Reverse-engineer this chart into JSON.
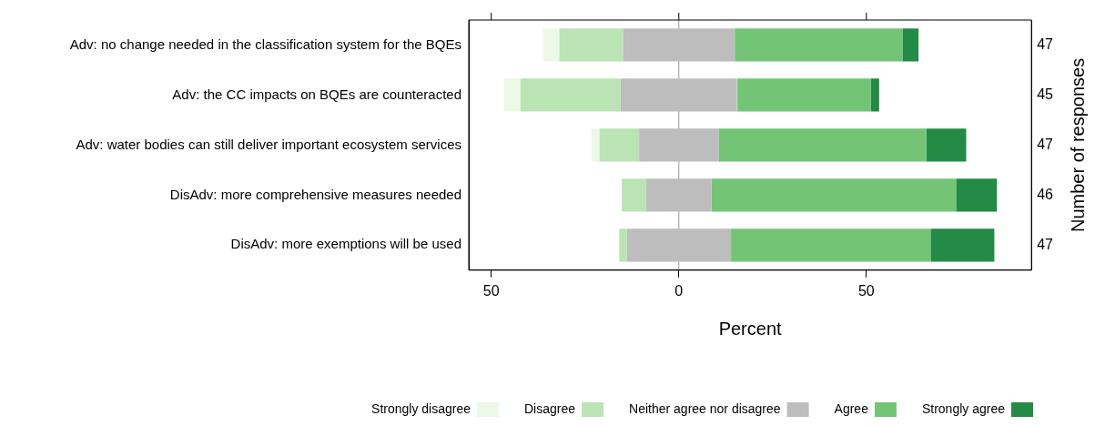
{
  "chart_data": {
    "type": "bar",
    "orientation": "horizontal",
    "categories": [
      "Adv: no change needed in the classification system for the BQEs",
      "Adv: the CC impacts on BQEs are counteracted",
      "Adv: water bodies can still deliver important ecosystem services",
      "DisAdv: more comprehensive measures needed",
      "DisAdv: more exemptions will be used"
    ],
    "y2_categories": [
      "47",
      "45",
      "47",
      "46",
      "47"
    ],
    "series": [
      {
        "name": "Strongly disagree",
        "color": "#edf8e9",
        "values": [
          4.3,
          4.4,
          2.1,
          null,
          null
        ],
        "base": [
          -36.2,
          -46.7,
          -23.3,
          null,
          null
        ]
      },
      {
        "name": "Disagree",
        "color": "#bae4b3",
        "values": [
          17.0,
          26.7,
          10.6,
          6.5,
          2.1
        ],
        "base": [
          -31.9,
          -42.3,
          -21.2,
          -15.2,
          -15.9
        ]
      },
      {
        "name": "Neither agree nor disagree",
        "color": "#bdbdbd",
        "values": [
          29.8,
          31.1,
          21.3,
          17.4,
          27.7
        ],
        "base": [
          -14.9,
          -15.6,
          -10.6,
          -8.7,
          -13.8
        ]
      },
      {
        "name": "Agree",
        "color": "#74c476",
        "values": [
          44.7,
          35.6,
          55.3,
          65.2,
          53.2
        ],
        "base": [
          14.9,
          15.6,
          10.7,
          8.7,
          13.9
        ]
      },
      {
        "name": "Strongly agree",
        "color": "#238b45",
        "values": [
          4.3,
          2.2,
          10.6,
          10.9,
          17.0
        ],
        "base": [
          59.6,
          51.2,
          66.0,
          73.9,
          67.1
        ]
      }
    ],
    "xlim": [
      -56,
      94
    ],
    "xticks": [
      {
        "value": -50,
        "label": "50"
      },
      0,
      50
    ],
    "xlabel": "Percent",
    "y2label": "Number of responses",
    "ref_lines": [
      {
        "axis": "x",
        "value": 0,
        "color": "#999999"
      }
    ],
    "grid": false,
    "legend": "bottom"
  }
}
